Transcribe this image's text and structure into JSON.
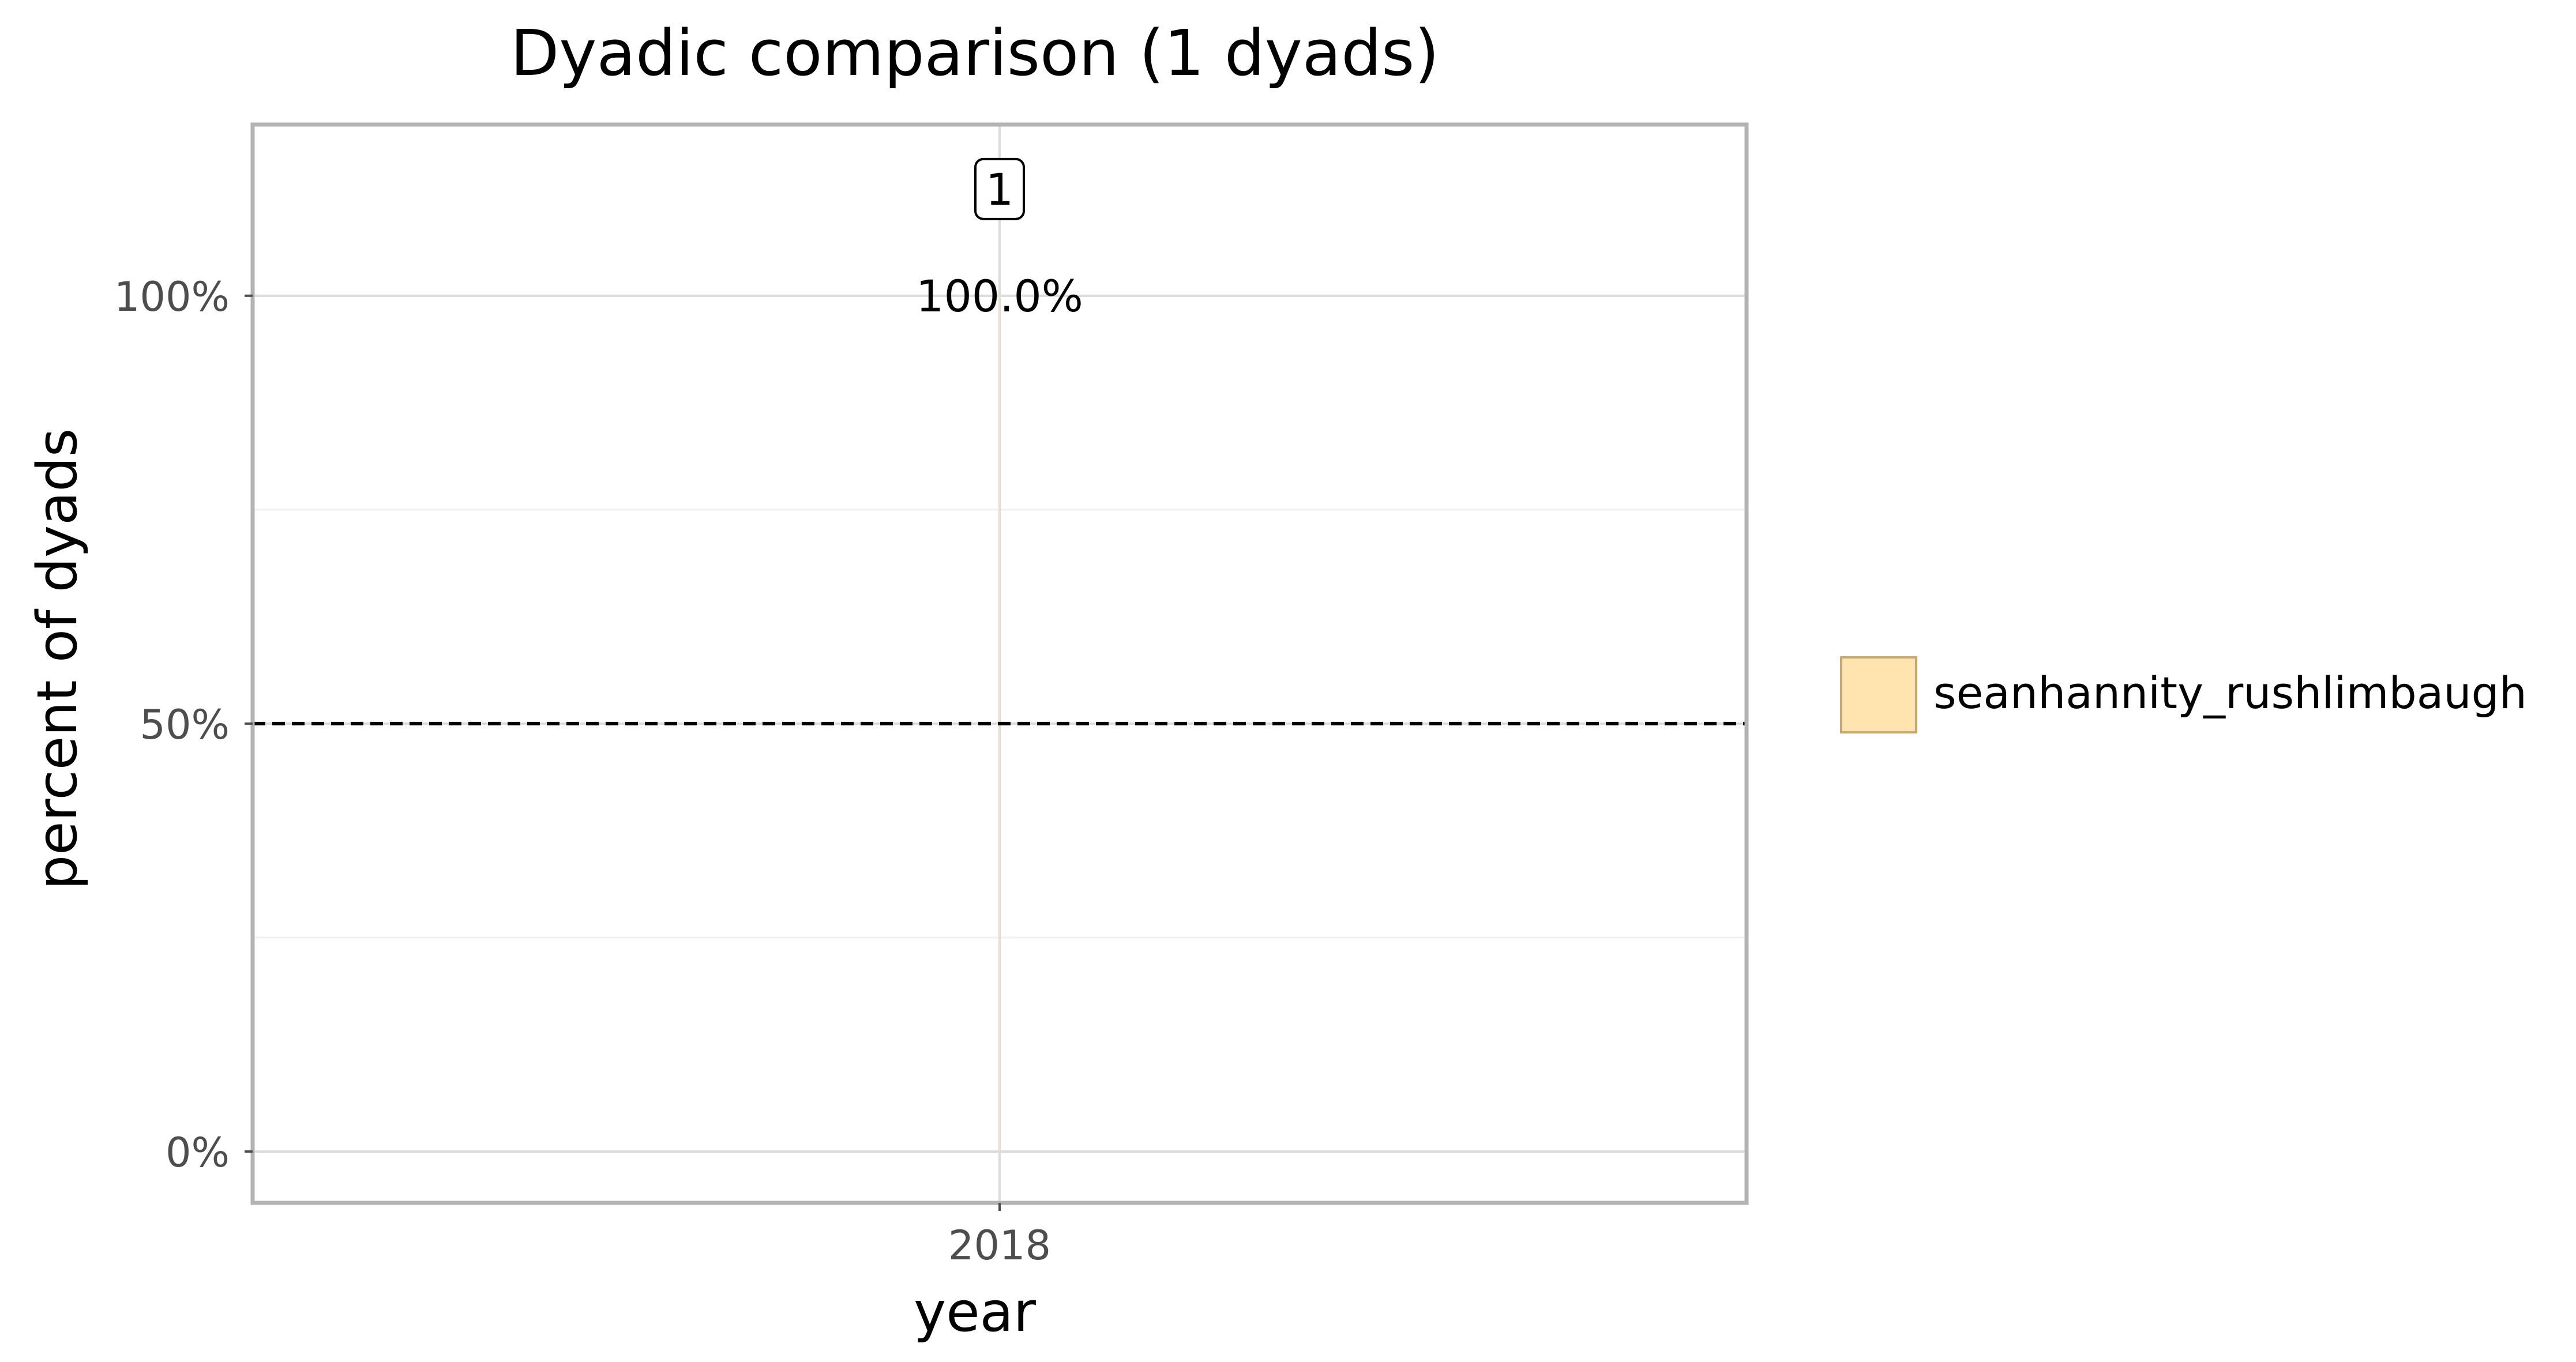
{
  "chart_data": {
    "type": "bar",
    "title": "Dyadic comparison (1 dyads)",
    "xlabel": "year",
    "ylabel": "percent of dyads",
    "categories": [
      "2018"
    ],
    "ylim": [
      -0.06,
      1.2
    ],
    "yticks": [
      0,
      0.5,
      1.0
    ],
    "ytick_labels": [
      "0%",
      "50%",
      "100%"
    ],
    "minor_yticks": [
      0.25,
      0.75
    ],
    "grid": true,
    "reference_line": {
      "y": 0.5,
      "style": "dashed",
      "color": "#000000"
    },
    "series": [
      {
        "name": "seanhannity_rushlimbaugh",
        "values": [
          1.0
        ],
        "color": "#FFE4AF",
        "edge_color": "#C8A86E"
      }
    ],
    "bar_labels": [
      "100.0%"
    ],
    "count_labels": [
      "1"
    ],
    "legend": {
      "position": "right"
    }
  }
}
